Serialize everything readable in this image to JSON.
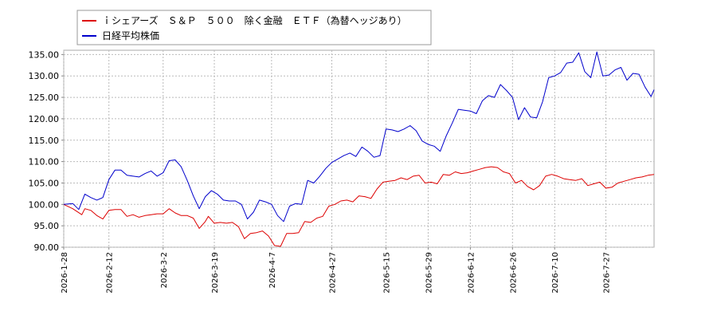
{
  "chart_data": {
    "type": "line",
    "title": "",
    "xlabel": "",
    "ylabel": "",
    "legend_position": "top-left",
    "grid": true,
    "ylim": [
      90,
      136
    ],
    "y_ticks": [
      "135.00",
      "130.00",
      "125.00",
      "120.00",
      "115.00",
      "110.00",
      "105.00",
      "100.00",
      "95.00",
      "90.00"
    ],
    "x_range": [
      "2026-1-28",
      "2026-8-12"
    ],
    "x_ticks": [
      "2026-1-28",
      "2026-2-12",
      "2026-3-2",
      "2026-3-19",
      "2026-4-7",
      "2026-4-27",
      "2026-5-15",
      "2026-5-29",
      "2026-6-12",
      "2026-6-26",
      "2026-7-10",
      "2026-7-27"
    ],
    "series": [
      {
        "name": "ｉシェアーズ　Ｓ＆Ｐ　５００　除く金融　ＥＴＦ（為替ヘッジあり）",
        "color": "#dd0000",
        "points": [
          [
            "2026-1-28",
            100.0
          ],
          [
            "2026-1-31",
            99.0
          ],
          [
            "2026-2-3",
            97.6
          ],
          [
            "2026-2-4",
            99.0
          ],
          [
            "2026-2-6",
            98.6
          ],
          [
            "2026-2-8",
            97.4
          ],
          [
            "2026-2-10",
            96.6
          ],
          [
            "2026-2-12",
            98.6
          ],
          [
            "2026-2-14",
            98.8
          ],
          [
            "2026-2-16",
            98.8
          ],
          [
            "2026-2-18",
            97.2
          ],
          [
            "2026-2-20",
            97.6
          ],
          [
            "2026-2-22",
            97.0
          ],
          [
            "2026-2-24",
            97.4
          ],
          [
            "2026-2-26",
            97.6
          ],
          [
            "2026-2-28",
            97.8
          ],
          [
            "2026-3-2",
            97.8
          ],
          [
            "2026-3-4",
            99.0
          ],
          [
            "2026-3-6",
            98.0
          ],
          [
            "2026-3-8",
            97.4
          ],
          [
            "2026-3-10",
            97.4
          ],
          [
            "2026-3-12",
            96.8
          ],
          [
            "2026-3-14",
            94.4
          ],
          [
            "2026-3-16",
            96.0
          ],
          [
            "2026-3-17",
            97.2
          ],
          [
            "2026-3-19",
            95.6
          ],
          [
            "2026-3-21",
            95.8
          ],
          [
            "2026-3-23",
            95.6
          ],
          [
            "2026-3-25",
            95.8
          ],
          [
            "2026-3-27",
            94.8
          ],
          [
            "2026-3-29",
            92.0
          ],
          [
            "2026-3-31",
            93.2
          ],
          [
            "2026-4-2",
            93.4
          ],
          [
            "2026-4-4",
            93.8
          ],
          [
            "2026-4-6",
            92.6
          ],
          [
            "2026-4-8",
            90.4
          ],
          [
            "2026-4-10",
            90.2
          ],
          [
            "2026-4-12",
            93.2
          ],
          [
            "2026-4-14",
            93.2
          ],
          [
            "2026-4-16",
            93.4
          ],
          [
            "2026-4-18",
            96.0
          ],
          [
            "2026-4-20",
            95.8
          ],
          [
            "2026-4-22",
            96.8
          ],
          [
            "2026-4-24",
            97.2
          ],
          [
            "2026-4-26",
            99.6
          ],
          [
            "2026-4-28",
            100.0
          ],
          [
            "2026-4-30",
            100.8
          ],
          [
            "2026-5-2",
            101.0
          ],
          [
            "2026-5-4",
            100.6
          ],
          [
            "2026-5-6",
            102.0
          ],
          [
            "2026-5-8",
            101.8
          ],
          [
            "2026-5-10",
            101.4
          ],
          [
            "2026-5-12",
            103.6
          ],
          [
            "2026-5-14",
            105.2
          ],
          [
            "2026-5-16",
            105.4
          ],
          [
            "2026-5-18",
            105.6
          ],
          [
            "2026-5-20",
            106.2
          ],
          [
            "2026-5-22",
            105.8
          ],
          [
            "2026-5-24",
            106.6
          ],
          [
            "2026-5-26",
            106.8
          ],
          [
            "2026-5-28",
            105.0
          ],
          [
            "2026-5-30",
            105.2
          ],
          [
            "2026-6-1",
            104.8
          ],
          [
            "2026-6-3",
            107.0
          ],
          [
            "2026-6-5",
            106.8
          ],
          [
            "2026-6-7",
            107.6
          ],
          [
            "2026-6-9",
            107.2
          ],
          [
            "2026-6-11",
            107.4
          ],
          [
            "2026-6-13",
            107.8
          ],
          [
            "2026-6-15",
            108.2
          ],
          [
            "2026-6-17",
            108.6
          ],
          [
            "2026-6-19",
            108.8
          ],
          [
            "2026-6-21",
            108.6
          ],
          [
            "2026-6-23",
            107.6
          ],
          [
            "2026-6-25",
            107.2
          ],
          [
            "2026-6-27",
            105.0
          ],
          [
            "2026-6-29",
            105.6
          ],
          [
            "2026-7-1",
            104.2
          ],
          [
            "2026-7-3",
            103.4
          ],
          [
            "2026-7-5",
            104.4
          ],
          [
            "2026-7-7",
            106.6
          ],
          [
            "2026-7-9",
            107.0
          ],
          [
            "2026-7-11",
            106.6
          ],
          [
            "2026-7-13",
            106.0
          ],
          [
            "2026-7-15",
            105.8
          ],
          [
            "2026-7-17",
            105.6
          ],
          [
            "2026-7-19",
            106.0
          ],
          [
            "2026-7-21",
            104.4
          ],
          [
            "2026-7-23",
            104.8
          ],
          [
            "2026-7-25",
            105.2
          ],
          [
            "2026-7-27",
            103.8
          ],
          [
            "2026-7-29",
            104.0
          ],
          [
            "2026-7-31",
            105.0
          ],
          [
            "2026-8-2",
            105.4
          ],
          [
            "2026-8-4",
            105.8
          ],
          [
            "2026-8-6",
            106.2
          ],
          [
            "2026-8-8",
            106.4
          ],
          [
            "2026-8-10",
            106.8
          ],
          [
            "2026-8-12",
            107.0
          ]
        ]
      },
      {
        "name": "日経平均株価",
        "color": "#0000cc",
        "points": [
          [
            "2026-1-28",
            100.0
          ],
          [
            "2026-1-31",
            100.2
          ],
          [
            "2026-2-2",
            98.8
          ],
          [
            "2026-2-4",
            102.4
          ],
          [
            "2026-2-6",
            101.6
          ],
          [
            "2026-2-8",
            101.0
          ],
          [
            "2026-2-10",
            101.6
          ],
          [
            "2026-2-12",
            105.8
          ],
          [
            "2026-2-14",
            108.0
          ],
          [
            "2026-2-16",
            108.0
          ],
          [
            "2026-2-18",
            106.8
          ],
          [
            "2026-2-20",
            106.6
          ],
          [
            "2026-2-22",
            106.4
          ],
          [
            "2026-2-24",
            107.2
          ],
          [
            "2026-2-26",
            107.8
          ],
          [
            "2026-2-28",
            106.6
          ],
          [
            "2026-3-2",
            107.4
          ],
          [
            "2026-3-4",
            110.2
          ],
          [
            "2026-3-6",
            110.4
          ],
          [
            "2026-3-8",
            108.8
          ],
          [
            "2026-3-10",
            105.6
          ],
          [
            "2026-3-12",
            102.0
          ],
          [
            "2026-3-14",
            99.0
          ],
          [
            "2026-3-16",
            101.8
          ],
          [
            "2026-3-18",
            103.2
          ],
          [
            "2026-3-20",
            102.4
          ],
          [
            "2026-3-22",
            101.0
          ],
          [
            "2026-3-24",
            100.8
          ],
          [
            "2026-3-26",
            100.8
          ],
          [
            "2026-3-28",
            100.0
          ],
          [
            "2026-3-30",
            96.6
          ],
          [
            "2026-4-1",
            98.2
          ],
          [
            "2026-4-3",
            101.0
          ],
          [
            "2026-4-5",
            100.6
          ],
          [
            "2026-4-7",
            100.0
          ],
          [
            "2026-4-9",
            97.4
          ],
          [
            "2026-4-11",
            96.0
          ],
          [
            "2026-4-13",
            99.6
          ],
          [
            "2026-4-15",
            100.2
          ],
          [
            "2026-4-17",
            100.0
          ],
          [
            "2026-4-19",
            105.6
          ],
          [
            "2026-4-21",
            105.0
          ],
          [
            "2026-4-23",
            106.6
          ],
          [
            "2026-4-25",
            108.4
          ],
          [
            "2026-4-27",
            109.8
          ],
          [
            "2026-4-29",
            110.6
          ],
          [
            "2026-5-1",
            111.4
          ],
          [
            "2026-5-3",
            112.0
          ],
          [
            "2026-5-5",
            111.2
          ],
          [
            "2026-5-7",
            113.4
          ],
          [
            "2026-5-9",
            112.4
          ],
          [
            "2026-5-11",
            111.0
          ],
          [
            "2026-5-13",
            111.4
          ],
          [
            "2026-5-15",
            117.6
          ],
          [
            "2026-5-17",
            117.4
          ],
          [
            "2026-5-19",
            117.0
          ],
          [
            "2026-5-21",
            117.6
          ],
          [
            "2026-5-23",
            118.4
          ],
          [
            "2026-5-25",
            117.2
          ],
          [
            "2026-5-27",
            114.8
          ],
          [
            "2026-5-29",
            114.0
          ],
          [
            "2026-5-31",
            113.6
          ],
          [
            "2026-6-2",
            112.4
          ],
          [
            "2026-6-4",
            116.0
          ],
          [
            "2026-6-6",
            119.0
          ],
          [
            "2026-6-8",
            122.2
          ],
          [
            "2026-6-10",
            122.0
          ],
          [
            "2026-6-12",
            121.8
          ],
          [
            "2026-6-14",
            121.2
          ],
          [
            "2026-6-16",
            124.2
          ],
          [
            "2026-6-18",
            125.4
          ],
          [
            "2026-6-20",
            125.0
          ],
          [
            "2026-6-22",
            128.0
          ],
          [
            "2026-6-24",
            126.6
          ],
          [
            "2026-6-26",
            125.0
          ],
          [
            "2026-6-28",
            119.8
          ],
          [
            "2026-6-30",
            122.6
          ],
          [
            "2026-7-2",
            120.4
          ],
          [
            "2026-7-4",
            120.2
          ],
          [
            "2026-7-6",
            124.0
          ],
          [
            "2026-7-8",
            129.6
          ],
          [
            "2026-7-10",
            130.0
          ],
          [
            "2026-7-12",
            130.8
          ],
          [
            "2026-7-14",
            133.0
          ],
          [
            "2026-7-16",
            133.2
          ],
          [
            "2026-7-18",
            135.4
          ],
          [
            "2026-7-20",
            131.0
          ],
          [
            "2026-7-22",
            129.6
          ],
          [
            "2026-7-24",
            135.6
          ],
          [
            "2026-7-26",
            130.0
          ],
          [
            "2026-7-28",
            130.2
          ],
          [
            "2026-7-30",
            131.4
          ],
          [
            "2026-8-1",
            132.0
          ],
          [
            "2026-8-3",
            129.0
          ],
          [
            "2026-8-5",
            130.6
          ],
          [
            "2026-8-7",
            130.4
          ],
          [
            "2026-8-9",
            127.4
          ],
          [
            "2026-8-11",
            125.2
          ],
          [
            "2026-8-12",
            126.8
          ]
        ]
      }
    ]
  }
}
